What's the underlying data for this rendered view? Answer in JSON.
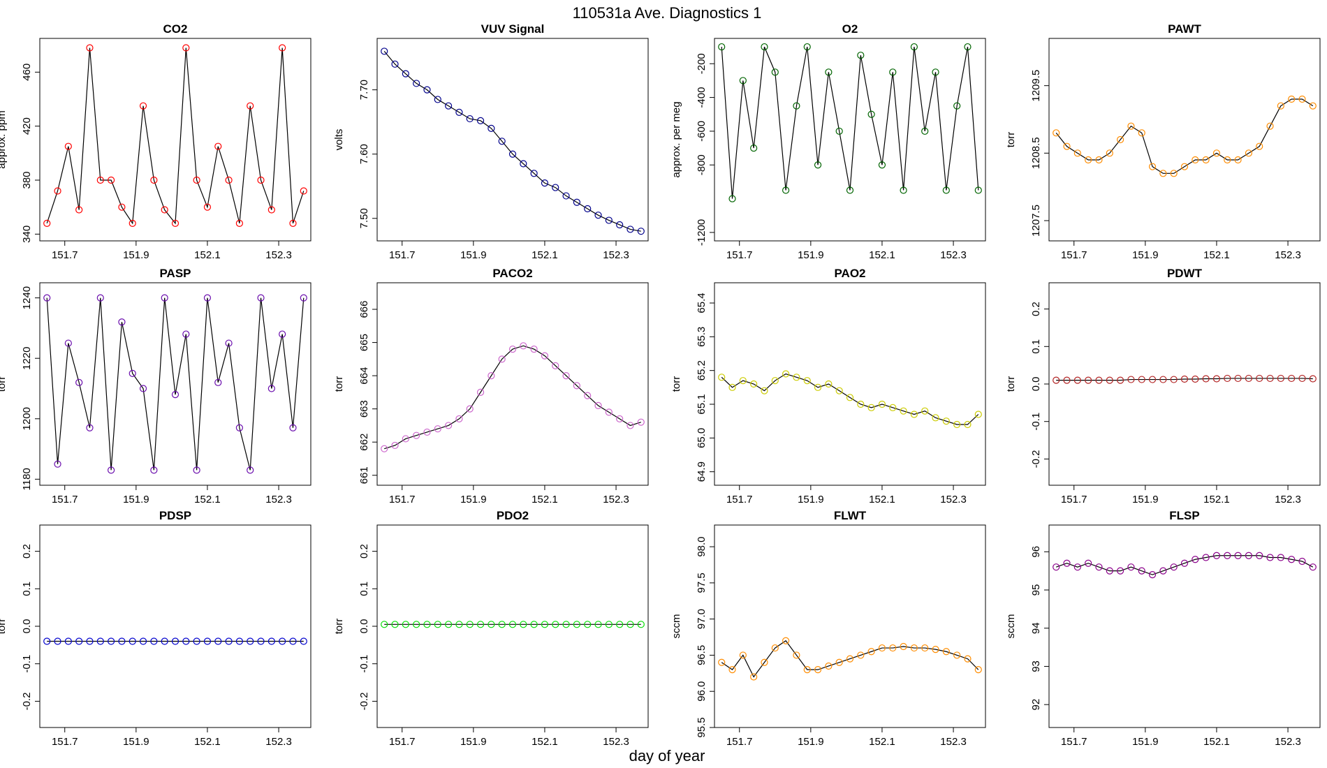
{
  "title": "110531a   Ave. Diagnostics 1",
  "x_label": "day of year",
  "chart_data": [
    {
      "type": "scatter",
      "title": "CO2",
      "y_label": "approx. ppm",
      "color": "#ff0000",
      "x": [
        151.65,
        151.68,
        151.71,
        151.74,
        151.77,
        151.8,
        151.83,
        151.86,
        151.89,
        151.92,
        151.95,
        151.98,
        152.01,
        152.04,
        152.07,
        152.1,
        152.13,
        152.16,
        152.19,
        152.22,
        152.25,
        152.28,
        152.31,
        152.34,
        152.37
      ],
      "values": [
        348,
        372,
        405,
        358,
        478,
        380,
        380,
        360,
        348,
        435,
        380,
        358,
        348,
        478,
        380,
        360,
        405,
        380,
        348,
        435,
        380,
        358,
        478,
        348,
        372
      ],
      "xlim": [
        151.63,
        152.39
      ],
      "xticks": [
        151.7,
        151.9,
        152.1,
        152.3
      ],
      "ylim": [
        335,
        485
      ],
      "yticks": [
        340,
        380,
        420,
        460
      ]
    },
    {
      "type": "scatter",
      "title": "VUV Signal",
      "y_label": "volts",
      "color": "#00008b",
      "x": [
        151.65,
        151.68,
        151.71,
        151.74,
        151.77,
        151.8,
        151.83,
        151.86,
        151.89,
        151.92,
        151.95,
        151.98,
        152.01,
        152.04,
        152.07,
        152.1,
        152.13,
        152.16,
        152.19,
        152.22,
        152.25,
        152.28,
        152.31,
        152.34,
        152.37
      ],
      "values": [
        7.76,
        7.74,
        7.725,
        7.71,
        7.7,
        7.685,
        7.675,
        7.665,
        7.655,
        7.652,
        7.64,
        7.62,
        7.6,
        7.585,
        7.57,
        7.555,
        7.548,
        7.535,
        7.525,
        7.515,
        7.505,
        7.497,
        7.49,
        7.483,
        7.48
      ],
      "xlim": [
        151.63,
        152.39
      ],
      "xticks": [
        151.7,
        151.9,
        152.1,
        152.3
      ],
      "ylim": [
        7.465,
        7.78
      ],
      "yticks": [
        {
          "value": 7.5,
          "label": "7.50"
        },
        {
          "value": 7.6,
          "label": "7.60"
        },
        {
          "value": 7.7,
          "label": "7.70"
        }
      ]
    },
    {
      "type": "scatter",
      "title": "O2",
      "y_label": "approx. per meg",
      "color": "#006400",
      "x": [
        151.65,
        151.68,
        151.71,
        151.74,
        151.77,
        151.8,
        151.83,
        151.86,
        151.89,
        151.92,
        151.95,
        151.98,
        152.01,
        152.04,
        152.07,
        152.1,
        152.13,
        152.16,
        152.19,
        152.22,
        152.25,
        152.28,
        152.31,
        152.34,
        152.37
      ],
      "values": [
        -100,
        -1000,
        -300,
        -700,
        -100,
        -250,
        -950,
        -450,
        -100,
        -800,
        -250,
        -600,
        -950,
        -150,
        -500,
        -800,
        -250,
        -950,
        -100,
        -600,
        -250,
        -950,
        -450,
        -100,
        -950
      ],
      "xlim": [
        151.63,
        152.39
      ],
      "xticks": [
        151.7,
        151.9,
        152.1,
        152.3
      ],
      "ylim": [
        -1250,
        -50
      ],
      "yticks": [
        -1200,
        -800,
        -600,
        -400,
        -200
      ]
    },
    {
      "type": "scatter",
      "title": "PAWT",
      "y_label": "torr",
      "color": "#ff8c00",
      "x": [
        151.65,
        151.68,
        151.71,
        151.74,
        151.77,
        151.8,
        151.83,
        151.86,
        151.89,
        151.92,
        151.95,
        151.98,
        152.01,
        152.04,
        152.07,
        152.1,
        152.13,
        152.16,
        152.19,
        152.22,
        152.25,
        152.28,
        152.31,
        152.34,
        152.37
      ],
      "values": [
        1208.8,
        1208.6,
        1208.5,
        1208.4,
        1208.4,
        1208.5,
        1208.7,
        1208.9,
        1208.8,
        1208.3,
        1208.2,
        1208.2,
        1208.3,
        1208.4,
        1208.4,
        1208.5,
        1208.4,
        1208.4,
        1208.5,
        1208.6,
        1208.9,
        1209.2,
        1209.3,
        1209.3,
        1209.2
      ],
      "xlim": [
        151.63,
        152.39
      ],
      "xticks": [
        151.7,
        151.9,
        152.1,
        152.3
      ],
      "ylim": [
        1207.2,
        1210.2
      ],
      "yticks": [
        1207.5,
        1208.5,
        1209.5
      ]
    },
    {
      "type": "scatter",
      "title": "PASP",
      "y_label": "torr",
      "color": "#6a0dad",
      "x": [
        151.65,
        151.68,
        151.71,
        151.74,
        151.77,
        151.8,
        151.83,
        151.86,
        151.89,
        151.92,
        151.95,
        151.98,
        152.01,
        152.04,
        152.07,
        152.1,
        152.13,
        152.16,
        152.19,
        152.22,
        152.25,
        152.28,
        152.31,
        152.34,
        152.37
      ],
      "values": [
        1240,
        1185,
        1225,
        1212,
        1197,
        1240,
        1183,
        1232,
        1215,
        1210,
        1183,
        1240,
        1208,
        1228,
        1183,
        1240,
        1212,
        1225,
        1197,
        1183,
        1240,
        1210,
        1228,
        1197,
        1240
      ],
      "xlim": [
        151.63,
        152.39
      ],
      "xticks": [
        151.7,
        151.9,
        152.1,
        152.3
      ],
      "ylim": [
        1178,
        1245
      ],
      "yticks": [
        1180,
        1200,
        1220,
        1240
      ]
    },
    {
      "type": "scatter",
      "title": "PACO2",
      "y_label": "torr",
      "color": "#cc66cc",
      "x": [
        151.65,
        151.68,
        151.71,
        151.74,
        151.77,
        151.8,
        151.83,
        151.86,
        151.89,
        151.92,
        151.95,
        151.98,
        152.01,
        152.04,
        152.07,
        152.1,
        152.13,
        152.16,
        152.19,
        152.22,
        152.25,
        152.28,
        152.31,
        152.34,
        152.37
      ],
      "values": [
        661.8,
        661.9,
        662.1,
        662.2,
        662.3,
        662.4,
        662.5,
        662.7,
        663.0,
        663.5,
        664.0,
        664.5,
        664.8,
        664.9,
        664.8,
        664.6,
        664.3,
        664.0,
        663.7,
        663.4,
        663.1,
        662.9,
        662.7,
        662.5,
        662.6
      ],
      "xlim": [
        151.63,
        152.39
      ],
      "xticks": [
        151.7,
        151.9,
        152.1,
        152.3
      ],
      "ylim": [
        660.7,
        666.8
      ],
      "yticks": [
        661,
        662,
        663,
        664,
        665,
        666
      ]
    },
    {
      "type": "scatter",
      "title": "PAO2",
      "y_label": "torr",
      "color": "#cccc00",
      "x": [
        151.65,
        151.68,
        151.71,
        151.74,
        151.77,
        151.8,
        151.83,
        151.86,
        151.89,
        151.92,
        151.95,
        151.98,
        152.01,
        152.04,
        152.07,
        152.1,
        152.13,
        152.16,
        152.19,
        152.22,
        152.25,
        152.28,
        152.31,
        152.34,
        152.37
      ],
      "values": [
        65.18,
        65.15,
        65.17,
        65.16,
        65.14,
        65.17,
        65.19,
        65.18,
        65.17,
        65.15,
        65.16,
        65.14,
        65.12,
        65.1,
        65.09,
        65.1,
        65.09,
        65.08,
        65.07,
        65.08,
        65.06,
        65.05,
        65.04,
        65.04,
        65.07
      ],
      "xlim": [
        151.63,
        152.39
      ],
      "xticks": [
        151.7,
        151.9,
        152.1,
        152.3
      ],
      "ylim": [
        64.86,
        65.46
      ],
      "yticks": [
        64.9,
        {
          "value": 65,
          "label": "65.0"
        },
        65.1,
        65.2,
        65.3,
        65.4
      ]
    },
    {
      "type": "scatter",
      "title": "PDWT",
      "y_label": "torr",
      "color": "#b22222",
      "x": [
        151.65,
        151.68,
        151.71,
        151.74,
        151.77,
        151.8,
        151.83,
        151.86,
        151.89,
        151.92,
        151.95,
        151.98,
        152.01,
        152.04,
        152.07,
        152.1,
        152.13,
        152.16,
        152.19,
        152.22,
        152.25,
        152.28,
        152.31,
        152.34,
        152.37
      ],
      "values": [
        0.01,
        0.01,
        0.01,
        0.01,
        0.01,
        0.01,
        0.01,
        0.012,
        0.012,
        0.012,
        0.012,
        0.012,
        0.013,
        0.013,
        0.014,
        0.014,
        0.015,
        0.015,
        0.015,
        0.015,
        0.015,
        0.015,
        0.015,
        0.015,
        0.014
      ],
      "xlim": [
        151.63,
        152.39
      ],
      "xticks": [
        151.7,
        151.9,
        152.1,
        152.3
      ],
      "ylim": [
        -0.27,
        0.27
      ],
      "yticks": [
        -0.2,
        -0.1,
        {
          "value": 0,
          "label": "0.0"
        },
        0.1,
        0.2
      ]
    },
    {
      "type": "scatter",
      "title": "PDSP",
      "y_label": "torr",
      "color": "#0000cd",
      "x": [
        151.65,
        151.68,
        151.71,
        151.74,
        151.77,
        151.8,
        151.83,
        151.86,
        151.89,
        151.92,
        151.95,
        151.98,
        152.01,
        152.04,
        152.07,
        152.1,
        152.13,
        152.16,
        152.19,
        152.22,
        152.25,
        152.28,
        152.31,
        152.34,
        152.37
      ],
      "values": [
        -0.04,
        -0.04,
        -0.04,
        -0.04,
        -0.04,
        -0.04,
        -0.04,
        -0.04,
        -0.04,
        -0.04,
        -0.04,
        -0.04,
        -0.04,
        -0.04,
        -0.04,
        -0.04,
        -0.04,
        -0.04,
        -0.04,
        -0.04,
        -0.04,
        -0.04,
        -0.04,
        -0.04,
        -0.04
      ],
      "xlim": [
        151.63,
        152.39
      ],
      "xticks": [
        151.7,
        151.9,
        152.1,
        152.3
      ],
      "ylim": [
        -0.27,
        0.27
      ],
      "yticks": [
        -0.2,
        -0.1,
        {
          "value": 0,
          "label": "0.0"
        },
        0.1,
        0.2
      ]
    },
    {
      "type": "scatter",
      "title": "PDO2",
      "y_label": "torr",
      "color": "#00dd00",
      "x": [
        151.65,
        151.68,
        151.71,
        151.74,
        151.77,
        151.8,
        151.83,
        151.86,
        151.89,
        151.92,
        151.95,
        151.98,
        152.01,
        152.04,
        152.07,
        152.1,
        152.13,
        152.16,
        152.19,
        152.22,
        152.25,
        152.28,
        152.31,
        152.34,
        152.37
      ],
      "values": [
        0.005,
        0.005,
        0.005,
        0.005,
        0.005,
        0.005,
        0.005,
        0.005,
        0.005,
        0.005,
        0.005,
        0.005,
        0.005,
        0.005,
        0.005,
        0.005,
        0.005,
        0.005,
        0.005,
        0.005,
        0.005,
        0.005,
        0.005,
        0.005,
        0.005
      ],
      "xlim": [
        151.63,
        152.39
      ],
      "xticks": [
        151.7,
        151.9,
        152.1,
        152.3
      ],
      "ylim": [
        -0.27,
        0.27
      ],
      "yticks": [
        -0.2,
        -0.1,
        {
          "value": 0,
          "label": "0.0"
        },
        0.1,
        0.2
      ]
    },
    {
      "type": "scatter",
      "title": "FLWT",
      "y_label": "sccm",
      "color": "#ff8c00",
      "x": [
        151.65,
        151.68,
        151.71,
        151.74,
        151.77,
        151.8,
        151.83,
        151.86,
        151.89,
        151.92,
        151.95,
        151.98,
        152.01,
        152.04,
        152.07,
        152.1,
        152.13,
        152.16,
        152.19,
        152.22,
        152.25,
        152.28,
        152.31,
        152.34,
        152.37
      ],
      "values": [
        96.4,
        96.3,
        96.5,
        96.2,
        96.4,
        96.6,
        96.7,
        96.5,
        96.3,
        96.3,
        96.35,
        96.4,
        96.45,
        96.5,
        96.55,
        96.6,
        96.6,
        96.62,
        96.6,
        96.6,
        96.58,
        96.55,
        96.5,
        96.45,
        96.3
      ],
      "xlim": [
        151.63,
        152.39
      ],
      "xticks": [
        151.7,
        151.9,
        152.1,
        152.3
      ],
      "ylim": [
        95.5,
        98.3
      ],
      "yticks": [
        95.5,
        {
          "value": 96,
          "label": "96.0"
        },
        96.5,
        {
          "value": 97,
          "label": "97.0"
        },
        97.5,
        {
          "value": 98,
          "label": "98.0"
        }
      ]
    },
    {
      "type": "scatter",
      "title": "FLSP",
      "y_label": "sccm",
      "color": "#8b008b",
      "x": [
        151.65,
        151.68,
        151.71,
        151.74,
        151.77,
        151.8,
        151.83,
        151.86,
        151.89,
        151.92,
        151.95,
        151.98,
        152.01,
        152.04,
        152.07,
        152.1,
        152.13,
        152.16,
        152.19,
        152.22,
        152.25,
        152.28,
        152.31,
        152.34,
        152.37
      ],
      "values": [
        95.6,
        95.7,
        95.6,
        95.7,
        95.6,
        95.5,
        95.5,
        95.6,
        95.5,
        95.4,
        95.5,
        95.6,
        95.7,
        95.8,
        95.85,
        95.9,
        95.9,
        95.9,
        95.9,
        95.9,
        95.85,
        95.85,
        95.8,
        95.75,
        95.6
      ],
      "xlim": [
        151.63,
        152.39
      ],
      "xticks": [
        151.7,
        151.9,
        152.1,
        152.3
      ],
      "ylim": [
        91.4,
        96.7
      ],
      "yticks": [
        92,
        93,
        94,
        95,
        96
      ]
    }
  ]
}
